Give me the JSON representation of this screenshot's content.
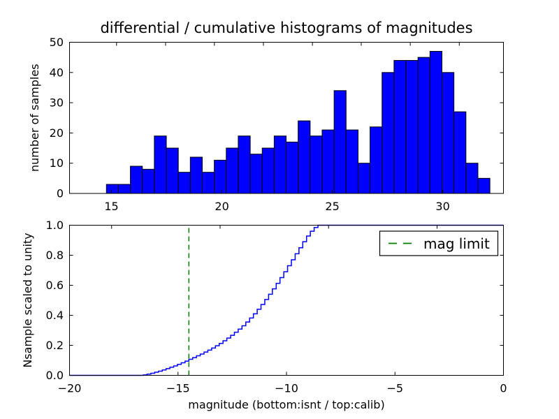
{
  "figure": {
    "background_color": "#ffffff",
    "accent_bar_color": "#0000ff",
    "accent_line_color": "#0000ff",
    "mag_limit_color": "#008000"
  },
  "chart_data": [
    {
      "id": "differential-histogram",
      "type": "bar",
      "title": "differential / cumulative histograms of magnitudes",
      "ylabel": "number of samples",
      "xlim": [
        13.1,
        32.75
      ],
      "ylim": [
        0,
        50
      ],
      "xticks": [
        15,
        20,
        25,
        30
      ],
      "xtick_labels": [
        "15",
        "20",
        "25",
        "30"
      ],
      "yticks": [
        0,
        10,
        20,
        30,
        40,
        50
      ],
      "ytick_labels": [
        "0",
        "10",
        "20",
        "30",
        "40",
        "50"
      ],
      "top_spine_tick_values": [
        15.23,
        17.45,
        19.66,
        21.88,
        24.1,
        26.31,
        28.53,
        30.75
      ],
      "grid": false,
      "bar_fill_color": "#0000ff",
      "bar_edge_color": "#000000",
      "bins": {
        "start": 14.77,
        "width": 0.5427,
        "count": 32
      },
      "values": [
        3,
        3,
        9,
        8,
        19,
        15,
        7,
        12,
        7,
        11,
        15,
        19,
        13,
        15,
        19,
        17,
        24,
        19,
        21,
        34,
        21,
        10,
        22,
        40,
        44,
        44,
        45,
        47,
        40,
        27,
        10,
        5
      ]
    },
    {
      "id": "cumulative-histogram",
      "type": "line",
      "ylabel": "Nsample scaled to unity",
      "xlabel": "magnitude (bottom:isnt / top:calib)",
      "xlim": [
        -20,
        0
      ],
      "ylim": [
        0.0,
        1.0
      ],
      "xticks": [
        -20,
        -15,
        -10,
        -5,
        0
      ],
      "xtick_labels": [
        "−20",
        "−15",
        "−10",
        "−5",
        "0"
      ],
      "yticks": [
        0.0,
        0.2,
        0.4,
        0.6,
        0.8,
        1.0
      ],
      "ytick_labels": [
        "0.0",
        "0.2",
        "0.4",
        "0.6",
        "0.8",
        "1.0"
      ],
      "top_spine_tick_values": [
        -18.06,
        -13.06,
        -8.06,
        -3.06
      ],
      "grid": false,
      "line_color": "#0000ff",
      "step_bins": {
        "start": -16.6,
        "width": 0.175
      },
      "cumulative_fractions": [
        0.003,
        0.008,
        0.014,
        0.021,
        0.028,
        0.036,
        0.045,
        0.054,
        0.063,
        0.073,
        0.084,
        0.095,
        0.107,
        0.118,
        0.13,
        0.142,
        0.155,
        0.168,
        0.182,
        0.197,
        0.213,
        0.23,
        0.248,
        0.267,
        0.287,
        0.308,
        0.33,
        0.355,
        0.382,
        0.41,
        0.44,
        0.472,
        0.505,
        0.54,
        0.576,
        0.613,
        0.651,
        0.69,
        0.73,
        0.77,
        0.81,
        0.85,
        0.89,
        0.928,
        0.96,
        0.985,
        1.0
      ],
      "annotations": {
        "mag_limit": {
          "x": -14.5,
          "color": "#008000",
          "linestyle": "dashed",
          "label": "mag limit"
        }
      },
      "legend": {
        "position": "upper right",
        "entries": [
          {
            "label": "mag limit",
            "color": "#008000",
            "linestyle": "dashed"
          }
        ]
      }
    }
  ]
}
